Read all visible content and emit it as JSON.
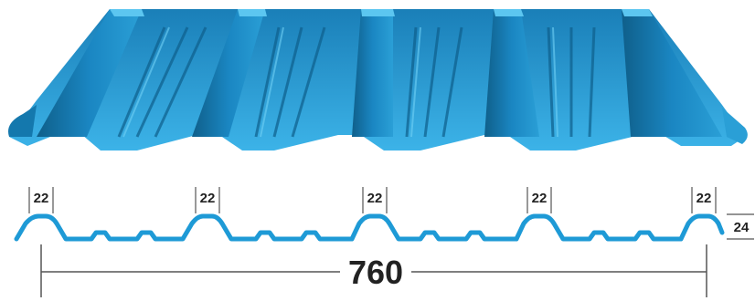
{
  "diagram": {
    "rib_width_labels": [
      "22",
      "22",
      "22",
      "22",
      "22"
    ],
    "rib_height_label": "24",
    "total_width_label": "760",
    "colors": {
      "sheet_dark": "#0f5f8a",
      "sheet_mid": "#1a86c2",
      "sheet_light": "#3cb3e8",
      "profile_line": "#1e9ad6",
      "dimension_line": "#555555",
      "label_text": "#222222"
    }
  }
}
